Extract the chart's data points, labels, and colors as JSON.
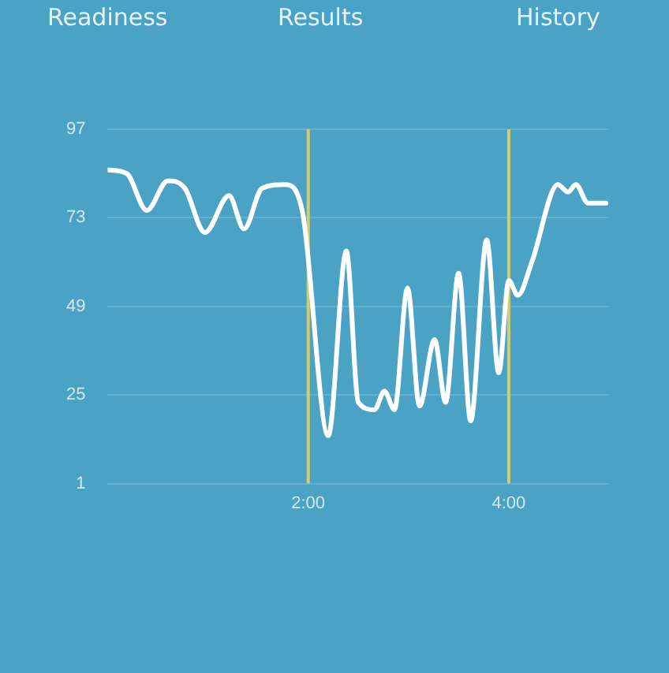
{
  "chart_data": {
    "type": "line",
    "annotations": [
      "Readiness",
      "Results",
      "History"
    ],
    "x": [
      0,
      0.19,
      0.39,
      0.6,
      0.77,
      0.97,
      1.21,
      1.36,
      1.54,
      1.77,
      1.94,
      2.2,
      2.38,
      2.5,
      2.66,
      2.76,
      2.86,
      2.99,
      3.11,
      3.26,
      3.37,
      3.5,
      3.62,
      3.78,
      3.9,
      4.0,
      4.09,
      4.23,
      4.49,
      4.59,
      4.67,
      4.79,
      4.97
    ],
    "series": [
      {
        "color": "#ffffff",
        "values": [
          86,
          85,
          75,
          83,
          81,
          69,
          79,
          70,
          81,
          82,
          75,
          14,
          64,
          23,
          21,
          26,
          21,
          54,
          22,
          40,
          23,
          58,
          18,
          67,
          31,
          56,
          52,
          61,
          82,
          80,
          82,
          77,
          77
        ]
      }
    ],
    "xlim": [
      0,
      5
    ],
    "xticks": [
      {
        "value": 2,
        "label": "2:00"
      },
      {
        "value": 4,
        "label": "4:00"
      }
    ],
    "ylim": [
      1,
      97
    ],
    "yticks": [
      1,
      25,
      49,
      73,
      97
    ],
    "ref_lines": [
      {
        "axis": "x",
        "value": 2,
        "color": "#d8cc6a"
      },
      {
        "axis": "x",
        "value": 4,
        "color": "#d8cc6a"
      }
    ],
    "grid": "y",
    "legend": false,
    "marker": "none",
    "line_style": "solid"
  }
}
